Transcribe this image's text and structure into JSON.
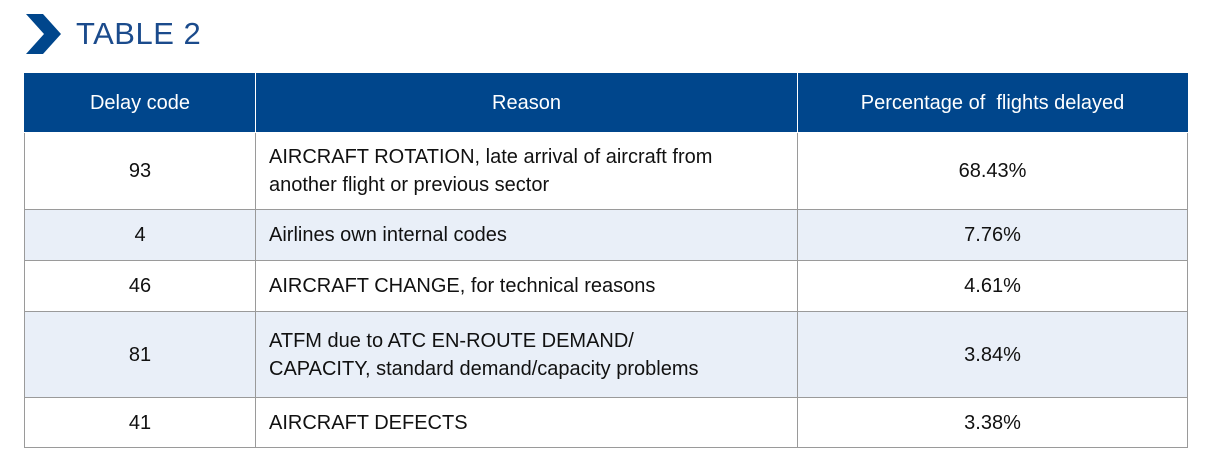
{
  "header": {
    "title": "TABLE 2",
    "chevron_icon": "chevron-right-icon",
    "accent_color": "#00468c",
    "title_color": "#1b4b8c"
  },
  "table": {
    "columns": [
      "Delay code",
      "Reason",
      "Percentage of  flights delayed"
    ],
    "rows": [
      {
        "code": "93",
        "reason_lines": [
          "AIRCRAFT ROTATION, late arrival of aircraft from",
          "another flight or previous sector"
        ],
        "pct": "68.43%"
      },
      {
        "code": "4",
        "reason_lines": [
          "Airlines own internal codes"
        ],
        "pct": "7.76%"
      },
      {
        "code": "46",
        "reason_lines": [
          "AIRCRAFT CHANGE, for technical reasons"
        ],
        "pct": "4.61%"
      },
      {
        "code": "81",
        "reason_lines": [
          "ATFM due to ATC EN-ROUTE DEMAND/",
          "CAPACITY, standard demand/capacity problems"
        ],
        "pct": "3.84%"
      },
      {
        "code": "41",
        "reason_lines": [
          "AIRCRAFT DEFECTS"
        ],
        "pct": "3.38%"
      }
    ],
    "header_bg": "#00468c",
    "alt_row_bg": "#e9eff8"
  }
}
